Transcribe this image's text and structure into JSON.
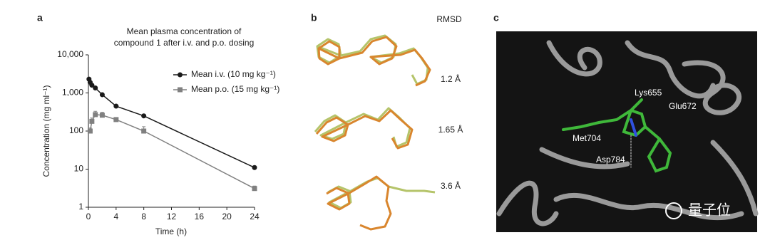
{
  "chart_data": {
    "type": "line",
    "panel_label": "a",
    "title": [
      "Mean plasma concentration of",
      "compound 1 after i.v. and p.o. dosing"
    ],
    "xlabel": "Time (h)",
    "ylabel": "Concentration (mg ml⁻¹)",
    "xlim": [
      0,
      24
    ],
    "xticks": [
      0,
      4,
      8,
      12,
      16,
      20,
      24
    ],
    "ylim": [
      1,
      10000
    ],
    "log_y": true,
    "yticks": [
      1,
      10,
      100,
      {
        "value": 1000,
        "label": "1,000"
      },
      {
        "value": 10000,
        "label": "10,000"
      }
    ],
    "grid": false,
    "legend": "upper right",
    "series": [
      {
        "name": "Mean i.v. (10 mg kg⁻¹)",
        "color": "#1a1a1a",
        "marker": "circle",
        "x": [
          0.083,
          0.25,
          0.5,
          1,
          2,
          4,
          8,
          24
        ],
        "values": [
          2300,
          1900,
          1600,
          1350,
          900,
          450,
          250,
          11
        ]
      },
      {
        "name": "Mean p.o. (15 mg kg⁻¹)",
        "color": "#808080",
        "marker": "square",
        "x": [
          0.25,
          0.5,
          1,
          2,
          4,
          8,
          24
        ],
        "values": [
          100,
          180,
          270,
          260,
          200,
          100,
          3.1
        ],
        "errors": [
          20,
          40,
          60,
          50,
          20,
          30,
          0.5
        ]
      }
    ]
  },
  "panel_b": {
    "label": "b",
    "header": "RMSD",
    "rows": [
      "1.2 Å",
      "1.65 Å",
      "3.6 Å"
    ]
  },
  "panel_c": {
    "label": "c",
    "residues": [
      "Lys655",
      "Glu672",
      "Met704",
      "Asp784"
    ],
    "watermark": "量子位"
  }
}
